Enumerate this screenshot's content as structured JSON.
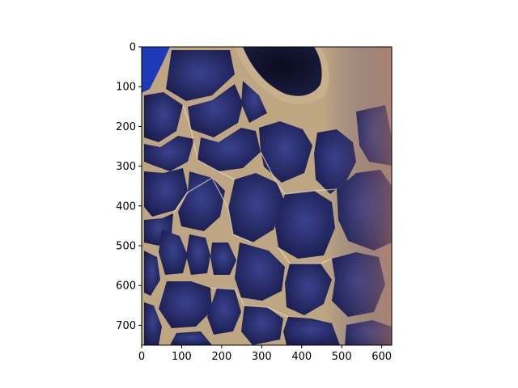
{
  "chart_data": {
    "type": "image",
    "subject": "close-up of a sea turtle head showing dark blue polygonal scales with cream-colored seams and an eye at the top",
    "title": "",
    "xlabel": "",
    "ylabel": "",
    "xlim": [
      0,
      625
    ],
    "ylim": [
      750,
      0
    ],
    "y_axis_inverted": true,
    "x_ticks": [
      0,
      100,
      200,
      300,
      400,
      500,
      600
    ],
    "y_ticks": [
      0,
      100,
      200,
      300,
      400,
      500,
      600,
      700
    ],
    "grid": false,
    "legend": "none",
    "colors": {
      "scale_dark": "#1c1f55",
      "scale_mid": "#2e357e",
      "seam": "#c9b08c",
      "seam_highlight": "#e6dcc6",
      "background_water": "#1e3ab8",
      "skin_warm": "#b07a6a",
      "axis": "#000000"
    }
  }
}
